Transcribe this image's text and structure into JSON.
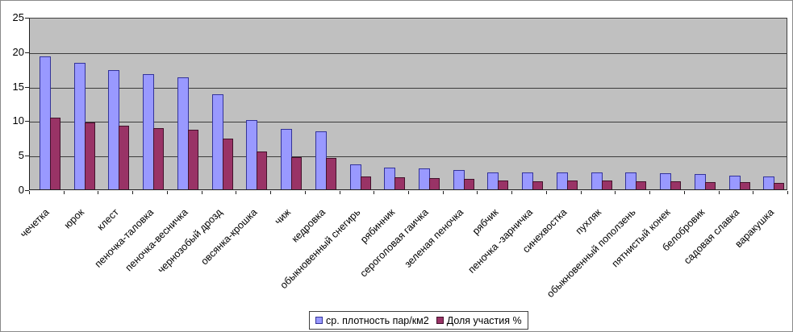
{
  "window": {
    "background": "#ffffff",
    "border_color": "#8a8a8a"
  },
  "chart_data": {
    "type": "bar",
    "title": "",
    "xlabel": "",
    "ylabel": "",
    "categories": [
      "чечетка",
      "юрок",
      "клест",
      "пеночка-таловка",
      "пеночка-весничка",
      "чернозобый дрозд",
      "овсянка-крошка",
      "чиж",
      "кедровка",
      "обыкновенный снегирь",
      "рябинник",
      "сероголовая гаичка",
      "зеленая пеночка",
      "рябчик",
      "пеночка -зарничка",
      "синехвостка",
      "пухляк",
      "обыкновенный поползень",
      "пятнистый конек",
      "белобровик",
      "садовая славка",
      "варакушка"
    ],
    "series": [
      {
        "name": "ср. плотность пар/км2",
        "color": "#9999ff",
        "border_color": "#333399",
        "values": [
          19.3,
          18.3,
          17.3,
          16.7,
          16.2,
          13.8,
          10.1,
          8.8,
          8.4,
          3.6,
          3.2,
          3.0,
          2.8,
          2.5,
          2.4,
          2.4,
          2.4,
          2.4,
          2.3,
          2.2,
          2.0,
          1.9
        ]
      },
      {
        "name": "Доля участия %",
        "color": "#993366",
        "border_color": "#43112b",
        "values": [
          10.4,
          9.7,
          9.2,
          8.9,
          8.6,
          7.4,
          5.5,
          4.7,
          4.5,
          1.9,
          1.7,
          1.6,
          1.5,
          1.3,
          1.2,
          1.3,
          1.3,
          1.2,
          1.2,
          1.1,
          1.0,
          0.9
        ]
      }
    ],
    "ylim": [
      0,
      25
    ],
    "yticks": [
      0,
      5,
      10,
      15,
      20,
      25
    ],
    "grid": true,
    "gridline_color": "#3c3c3c",
    "plot_background": "#c0c0c0",
    "legend_position": "bottom-center"
  }
}
